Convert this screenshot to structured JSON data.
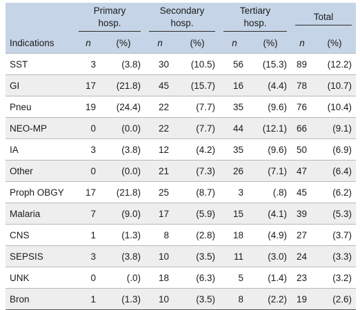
{
  "header": {
    "groups": [
      {
        "line1": "Primary",
        "line2": "hosp."
      },
      {
        "line1": "Secondary",
        "line2": "hosp."
      },
      {
        "line1": "Tertiary",
        "line2": "hosp."
      },
      {
        "line1": "Total",
        "line2": ""
      }
    ],
    "row_label": "Indications",
    "n": "n",
    "pct": "(%)"
  },
  "rows": [
    {
      "label": "SST",
      "cells": [
        "3",
        "(3.8)",
        "30",
        "(10.5)",
        "56",
        "(15.3)",
        "89",
        "(12.2)"
      ]
    },
    {
      "label": "GI",
      "cells": [
        "17",
        "(21.8)",
        "45",
        "(15.7)",
        "16",
        "(4.4)",
        "78",
        "(10.7)"
      ]
    },
    {
      "label": "Pneu",
      "cells": [
        "19",
        "(24.4)",
        "22",
        "(7.7)",
        "35",
        "(9.6)",
        "76",
        "(10.4)"
      ]
    },
    {
      "label": "NEO-MP",
      "cells": [
        "0",
        "(0.0)",
        "22",
        "(7.7)",
        "44",
        "(12.1)",
        "66",
        "(9.1)"
      ]
    },
    {
      "label": "IA",
      "cells": [
        "3",
        "(3.8)",
        "12",
        "(4.2)",
        "35",
        "(9.6)",
        "50",
        "(6.9)"
      ]
    },
    {
      "label": "Other",
      "cells": [
        "0",
        "(0.0)",
        "21",
        "(7.3)",
        "26",
        "(7.1)",
        "47",
        "(6.4)"
      ]
    },
    {
      "label": "Proph OBGY",
      "cells": [
        "17",
        "(21.8)",
        "25",
        "(8.7)",
        "3",
        "(.8)",
        "45",
        "(6.2)"
      ]
    },
    {
      "label": "Malaria",
      "cells": [
        "7",
        "(9.0)",
        "17",
        "(5.9)",
        "15",
        "(4.1)",
        "39",
        "(5.3)"
      ]
    },
    {
      "label": "CNS",
      "cells": [
        "1",
        "(1.3)",
        "8",
        "(2.8)",
        "18",
        "(4.9)",
        "27",
        "(3.7)"
      ]
    },
    {
      "label": "SEPSIS",
      "cells": [
        "3",
        "(3.8)",
        "10",
        "(3.5)",
        "11",
        "(3.0)",
        "24",
        "(3.3)"
      ]
    },
    {
      "label": "UNK",
      "cells": [
        "0",
        "(.0)",
        "18",
        "(6.3)",
        "5",
        "(1.4)",
        "23",
        "(3.2)"
      ]
    },
    {
      "label": "Bron",
      "cells": [
        "1",
        "(1.3)",
        "10",
        "(3.5)",
        "8",
        "(2.2)",
        "19",
        "(2.6)"
      ]
    }
  ]
}
